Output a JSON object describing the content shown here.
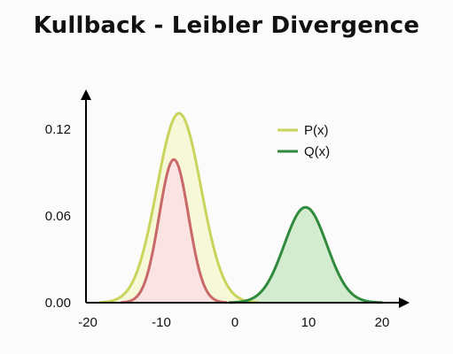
{
  "chart_data": {
    "type": "area",
    "title": "Kullback - Leibler Divergence",
    "xlabel": "",
    "ylabel": "",
    "xlim": [
      -20,
      20
    ],
    "ylim": [
      0,
      0.12
    ],
    "x_ticks": [
      -20,
      -10,
      0,
      10,
      20
    ],
    "x_tick_labels": [
      "-20",
      "-10",
      "0",
      "10",
      "20"
    ],
    "y_ticks": [
      0,
      0.06,
      0.12
    ],
    "y_tick_labels": [
      "0.00",
      "0.06",
      "0.12"
    ],
    "legend_position": "top-right",
    "grid": false,
    "series": [
      {
        "name": "P(x)",
        "color": "#c9d45c",
        "fill": "#f6f8d8",
        "legend": true,
        "components": [
          {
            "mean": -7.6,
            "sd": 3.0,
            "peak": 0.131
          }
        ]
      },
      {
        "name": "",
        "color": "#c96868",
        "fill": "#fbe3e3",
        "legend": false,
        "components": [
          {
            "mean": -8.3,
            "sd": 2.0,
            "peak": 0.099
          }
        ]
      },
      {
        "name": "Q(x)",
        "color": "#2f8a3c",
        "fill": "#d3ebcf",
        "legend": true,
        "components": [
          {
            "mean": 9.6,
            "sd": 2.9,
            "peak": 0.066
          }
        ]
      }
    ]
  }
}
